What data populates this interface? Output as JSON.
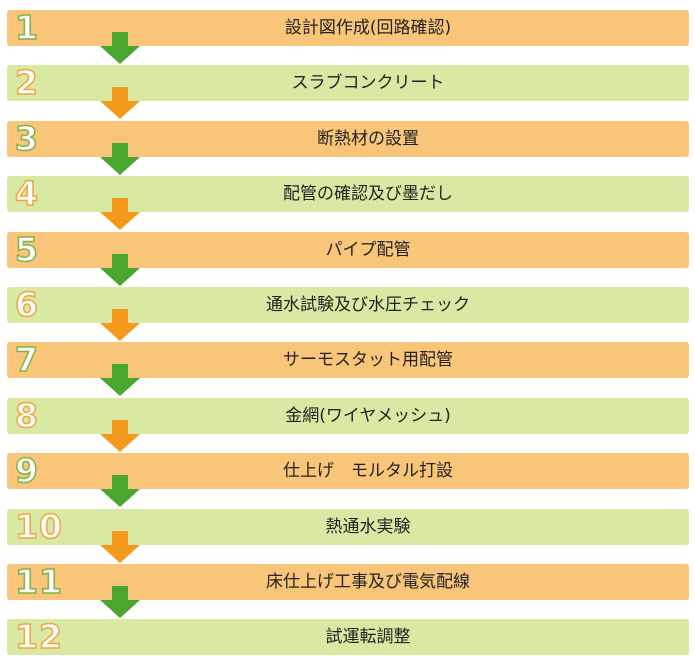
{
  "colors": {
    "orange_band": "#f9c579",
    "green_band": "#d8e9a3",
    "green_arrow": "#4aa62e",
    "orange_arrow": "#f39a1c"
  },
  "steps": [
    {
      "number": "1",
      "label": "設計図作成(回路確認)",
      "band": "orange",
      "arrow": "green-arrow-icon"
    },
    {
      "number": "2",
      "label": "スラブコンクリート",
      "band": "green",
      "arrow": "orange-arrow-icon"
    },
    {
      "number": "3",
      "label": "断熱材の設置",
      "band": "orange",
      "arrow": "green-arrow-icon"
    },
    {
      "number": "4",
      "label": "配管の確認及び墨だし",
      "band": "green",
      "arrow": "orange-arrow-icon"
    },
    {
      "number": "5",
      "label": "パイプ配管",
      "band": "orange",
      "arrow": "green-arrow-icon"
    },
    {
      "number": "6",
      "label": "通水試験及び水圧チェック",
      "band": "green",
      "arrow": "orange-arrow-icon"
    },
    {
      "number": "7",
      "label": "サーモスタット用配管",
      "band": "orange",
      "arrow": "green-arrow-icon"
    },
    {
      "number": "8",
      "label": "金網(ワイヤメッシュ)",
      "band": "green",
      "arrow": "orange-arrow-icon"
    },
    {
      "number": "9",
      "label": "仕上げ　モルタル打設",
      "band": "orange",
      "arrow": "green-arrow-icon"
    },
    {
      "number": "10",
      "label": "熱通水実験",
      "band": "green",
      "arrow": "orange-arrow-icon"
    },
    {
      "number": "11",
      "label": "床仕上げ工事及び電気配線",
      "band": "orange",
      "arrow": "green-arrow-icon"
    },
    {
      "number": "12",
      "label": "試運転調整",
      "band": "green",
      "arrow": ""
    }
  ]
}
